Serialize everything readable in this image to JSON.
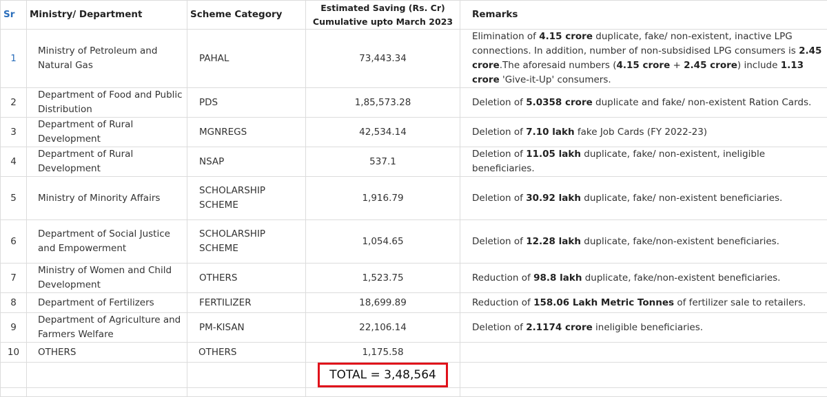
{
  "headers": {
    "sr": "Sr",
    "ministry": "Ministry/ Department",
    "category": "Scheme Category",
    "saving_line1": "Estimated Saving (Rs. Cr)",
    "saving_line2": "Cumulative upto March 2023",
    "remarks": "Remarks"
  },
  "rows": [
    {
      "sr": "1",
      "ministry": "Ministry of Petroleum and Natural Gas",
      "category": "PAHAL",
      "saving": "73,443.34",
      "remarks": [
        {
          "t": "Elimination of ",
          "b": false
        },
        {
          "t": "4.15 crore",
          "b": true
        },
        {
          "t": " duplicate, fake/ non-existent, inactive LPG connections. In addition, number of non-subsidised LPG consumers is ",
          "b": false
        },
        {
          "t": "2.45 crore",
          "b": true
        },
        {
          "t": ".The aforesaid numbers  (",
          "b": false
        },
        {
          "t": "4.15 crore",
          "b": true
        },
        {
          "t": " + ",
          "b": false
        },
        {
          "t": "2.45 crore",
          "b": true
        },
        {
          "t": ") include ",
          "b": false
        },
        {
          "t": "1.13 crore",
          "b": true
        },
        {
          "t": " 'Give-it-Up' consumers.",
          "b": false
        }
      ]
    },
    {
      "sr": "2",
      "ministry": "Department of Food and Public Distribution",
      "category": "PDS",
      "saving": "1,85,573.28",
      "remarks": [
        {
          "t": "Deletion of ",
          "b": false
        },
        {
          "t": "5.0358 crore",
          "b": true
        },
        {
          "t": " duplicate and fake/ non-existent Ration Cards.",
          "b": false
        }
      ]
    },
    {
      "sr": "3",
      "ministry": "Department of Rural Development",
      "category": "MGNREGS",
      "saving": "42,534.14",
      "remarks": [
        {
          "t": "Deletion of ",
          "b": false
        },
        {
          "t": "7.10 lakh",
          "b": true
        },
        {
          "t": " fake Job Cards (FY 2022-23)",
          "b": false
        }
      ]
    },
    {
      "sr": "4",
      "ministry": "Department of Rural Development",
      "category": "NSAP",
      "saving": "537.1",
      "remarks": [
        {
          "t": "Deletion of ",
          "b": false
        },
        {
          "t": "11.05 lakh",
          "b": true
        },
        {
          "t": " duplicate, fake/ non-existent, ineligible beneficiaries.",
          "b": false
        }
      ]
    },
    {
      "sr": "5",
      "ministry": "Ministry of Minority Affairs",
      "category": "SCHOLARSHIP SCHEME",
      "saving": "1,916.79",
      "remarks": [
        {
          "t": "Deletion of ",
          "b": false
        },
        {
          "t": "30.92 lakh",
          "b": true
        },
        {
          "t": " duplicate, fake/ non-existent beneficiaries.",
          "b": false
        }
      ]
    },
    {
      "sr": "6",
      "ministry": "Department of Social Justice and Empowerment",
      "category": "SCHOLARSHIP SCHEME",
      "saving": "1,054.65",
      "remarks": [
        {
          "t": "Deletion of ",
          "b": false
        },
        {
          "t": "12.28 lakh",
          "b": true
        },
        {
          "t": " duplicate, fake/non-existent beneficiaries.",
          "b": false
        }
      ]
    },
    {
      "sr": "7",
      "ministry": "Ministry of Women and Child Development",
      "category": "OTHERS",
      "saving": "1,523.75",
      "remarks": [
        {
          "t": "Reduction of ",
          "b": false
        },
        {
          "t": "98.8 lakh",
          "b": true
        },
        {
          "t": " duplicate, fake/non-existent beneficiaries.",
          "b": false
        }
      ]
    },
    {
      "sr": "8",
      "ministry": "Department of Fertilizers",
      "category": "FERTILIZER",
      "saving": "18,699.89",
      "remarks": [
        {
          "t": "Reduction of ",
          "b": false
        },
        {
          "t": "158.06 Lakh Metric Tonnes",
          "b": true
        },
        {
          "t": " of fertilizer sale to retailers.",
          "b": false
        }
      ]
    },
    {
      "sr": "9",
      "ministry": "Department of Agriculture and Farmers Welfare",
      "category": "PM-KISAN",
      "saving": "22,106.14",
      "remarks": [
        {
          "t": "Deletion of ",
          "b": false
        },
        {
          "t": "2.1174 crore",
          "b": true
        },
        {
          "t": " ineligible beneficiaries.",
          "b": false
        }
      ]
    },
    {
      "sr": "10",
      "ministry": "OTHERS",
      "category": "OTHERS",
      "saving": "1,175.58",
      "remarks": []
    }
  ],
  "total": "TOTAL = 3,48,564",
  "colors": {
    "sr_blue": "#2a6ebb",
    "highlight_red": "#e0101a",
    "grid": "#dcdcdc"
  }
}
